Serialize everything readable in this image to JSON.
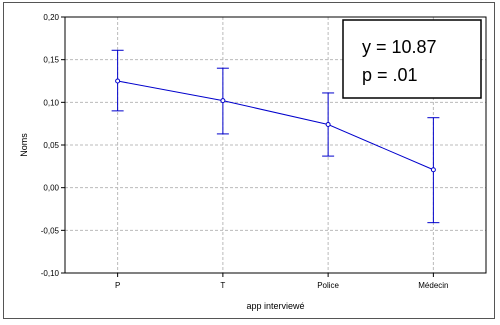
{
  "chart_data": {
    "type": "line",
    "categories": [
      "P",
      "T",
      "Police",
      "Médecin"
    ],
    "series": [
      {
        "values": [
          0.125,
          0.102,
          0.074,
          0.021
        ],
        "error_low": [
          0.09,
          0.063,
          0.037,
          -0.041
        ],
        "error_high": [
          0.161,
          0.14,
          0.111,
          0.082
        ]
      }
    ],
    "xlabel": "app interviewé",
    "ylabel": "Noms",
    "ylim": [
      -0.1,
      0.2
    ],
    "yticks": [
      0.2,
      0.15,
      0.1,
      0.05,
      0.0,
      -0.05,
      -0.1
    ],
    "ytick_labels": [
      "0,20",
      "0,15",
      "0,10",
      "0,05",
      "0,00",
      "-0,05",
      "-0,10"
    ],
    "grid": true,
    "annotation": {
      "line1": "y = 10.87",
      "line2": "p = .01"
    },
    "colors": {
      "series": "#0000cc",
      "grid": "#bbbbbb",
      "axis": "#000000"
    }
  }
}
